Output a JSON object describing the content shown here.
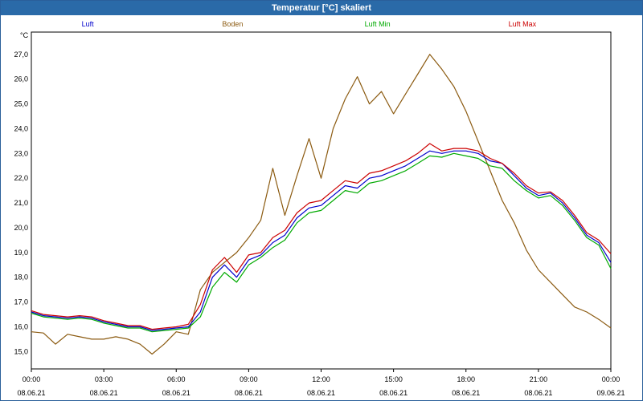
{
  "window": {
    "title": "Temperatur [°C] skaliert"
  },
  "chart_data": {
    "type": "line",
    "title": "Temperatur [°C] skaliert",
    "ylabel": "°C",
    "xlabel": "",
    "ylim": [
      14.3,
      27.9
    ],
    "xlim": [
      0,
      24
    ],
    "grid": true,
    "legend_position": "top",
    "y_ticks": [
      15,
      16,
      17,
      18,
      19,
      20,
      21,
      22,
      23,
      24,
      25,
      26,
      27
    ],
    "y_tick_labels": [
      "15,0",
      "16,0",
      "17,0",
      "18,0",
      "19,0",
      "20,0",
      "21,0",
      "22,0",
      "23,0",
      "24,0",
      "25,0",
      "26,0",
      "27,0"
    ],
    "x_ticks": [
      {
        "x": 0,
        "time": "00:00",
        "date": "08.06.21"
      },
      {
        "x": 3,
        "time": "03:00",
        "date": "08.06.21"
      },
      {
        "x": 6,
        "time": "06:00",
        "date": "08.06.21"
      },
      {
        "x": 9,
        "time": "09:00",
        "date": "08.06.21"
      },
      {
        "x": 12,
        "time": "12:00",
        "date": "08.06.21"
      },
      {
        "x": 15,
        "time": "15:00",
        "date": "08.06.21"
      },
      {
        "x": 18,
        "time": "18:00",
        "date": "08.06.21"
      },
      {
        "x": 21,
        "time": "21:00",
        "date": "08.06.21"
      },
      {
        "x": 24,
        "time": "00:00",
        "date": "09.06.21"
      }
    ],
    "series": [
      {
        "name": "Luft",
        "color": "#0000cc",
        "x": [
          0,
          0.5,
          1,
          1.5,
          2,
          2.5,
          3,
          3.5,
          4,
          4.5,
          5,
          5.5,
          6,
          6.5,
          7,
          7.5,
          8,
          8.5,
          9,
          9.5,
          10,
          10.5,
          11,
          11.5,
          12,
          12.5,
          13,
          13.5,
          14,
          14.5,
          15,
          15.5,
          16,
          16.5,
          17,
          17.5,
          18,
          18.5,
          19,
          19.5,
          20,
          20.5,
          21,
          21.5,
          22,
          22.5,
          23,
          23.5,
          24
        ],
        "values": [
          16.6,
          16.45,
          16.4,
          16.35,
          16.4,
          16.35,
          16.2,
          16.1,
          16.0,
          16.0,
          15.85,
          15.9,
          15.95,
          16.0,
          16.6,
          18.0,
          18.5,
          18.0,
          18.7,
          18.9,
          19.4,
          19.7,
          20.4,
          20.8,
          20.9,
          21.3,
          21.7,
          21.6,
          22.0,
          22.1,
          22.3,
          22.5,
          22.8,
          23.1,
          23.0,
          23.1,
          23.1,
          23.0,
          22.7,
          22.6,
          22.1,
          21.6,
          21.3,
          21.4,
          21.0,
          20.4,
          19.7,
          19.4,
          18.6
        ]
      },
      {
        "name": "Boden",
        "color": "#8b5a10",
        "x": [
          0,
          0.5,
          1,
          1.5,
          2,
          2.5,
          3,
          3.5,
          4,
          4.5,
          5,
          5.5,
          6,
          6.5,
          7,
          7.5,
          8,
          8.5,
          9,
          9.5,
          10,
          10.5,
          11,
          11.5,
          12,
          12.5,
          13,
          13.5,
          14,
          14.5,
          15,
          15.5,
          16,
          16.5,
          17,
          17.5,
          18,
          18.5,
          19,
          19.5,
          20,
          20.5,
          21,
          21.5,
          22,
          22.5,
          23,
          23.5,
          24
        ],
        "values": [
          15.8,
          15.75,
          15.3,
          15.7,
          15.6,
          15.5,
          15.5,
          15.6,
          15.5,
          15.3,
          14.9,
          15.3,
          15.8,
          15.7,
          17.5,
          18.2,
          18.6,
          19.0,
          19.6,
          20.3,
          22.4,
          20.5,
          22.1,
          23.6,
          22.0,
          24.0,
          25.2,
          26.1,
          25.0,
          25.5,
          24.6,
          25.4,
          26.2,
          27.0,
          26.4,
          25.7,
          24.7,
          23.5,
          22.3,
          21.1,
          20.2,
          19.1,
          18.3,
          17.8,
          17.3,
          16.8,
          16.6,
          16.3,
          15.95
        ]
      },
      {
        "name": "Luft Min",
        "color": "#00aa00",
        "x": [
          0,
          0.5,
          1,
          1.5,
          2,
          2.5,
          3,
          3.5,
          4,
          4.5,
          5,
          5.5,
          6,
          6.5,
          7,
          7.5,
          8,
          8.5,
          9,
          9.5,
          10,
          10.5,
          11,
          11.5,
          12,
          12.5,
          13,
          13.5,
          14,
          14.5,
          15,
          15.5,
          16,
          16.5,
          17,
          17.5,
          18,
          18.5,
          19,
          19.5,
          20,
          20.5,
          21,
          21.5,
          22,
          22.5,
          23,
          23.5,
          24
        ],
        "values": [
          16.55,
          16.4,
          16.35,
          16.3,
          16.35,
          16.3,
          16.15,
          16.05,
          15.95,
          15.95,
          15.8,
          15.85,
          15.9,
          15.95,
          16.4,
          17.6,
          18.2,
          17.8,
          18.5,
          18.8,
          19.2,
          19.5,
          20.2,
          20.6,
          20.7,
          21.1,
          21.5,
          21.4,
          21.8,
          21.9,
          22.1,
          22.3,
          22.6,
          22.9,
          22.85,
          23.0,
          22.9,
          22.8,
          22.5,
          22.4,
          21.9,
          21.5,
          21.2,
          21.3,
          20.9,
          20.3,
          19.6,
          19.3,
          18.35
        ]
      },
      {
        "name": "Luft Max",
        "color": "#cc0000",
        "x": [
          0,
          0.5,
          1,
          1.5,
          2,
          2.5,
          3,
          3.5,
          4,
          4.5,
          5,
          5.5,
          6,
          6.5,
          7,
          7.5,
          8,
          8.5,
          9,
          9.5,
          10,
          10.5,
          11,
          11.5,
          12,
          12.5,
          13,
          13.5,
          14,
          14.5,
          15,
          15.5,
          16,
          16.5,
          17,
          17.5,
          18,
          18.5,
          19,
          19.5,
          20,
          20.5,
          21,
          21.5,
          22,
          22.5,
          23,
          23.5,
          24
        ],
        "values": [
          16.65,
          16.5,
          16.45,
          16.4,
          16.45,
          16.4,
          16.25,
          16.15,
          16.05,
          16.05,
          15.9,
          15.95,
          16.0,
          16.1,
          16.9,
          18.3,
          18.8,
          18.2,
          18.9,
          19.0,
          19.6,
          19.9,
          20.6,
          21.0,
          21.1,
          21.5,
          21.9,
          21.8,
          22.2,
          22.3,
          22.5,
          22.7,
          23.0,
          23.4,
          23.1,
          23.2,
          23.2,
          23.1,
          22.8,
          22.6,
          22.2,
          21.7,
          21.4,
          21.45,
          21.1,
          20.5,
          19.8,
          19.5,
          18.95
        ]
      }
    ]
  }
}
